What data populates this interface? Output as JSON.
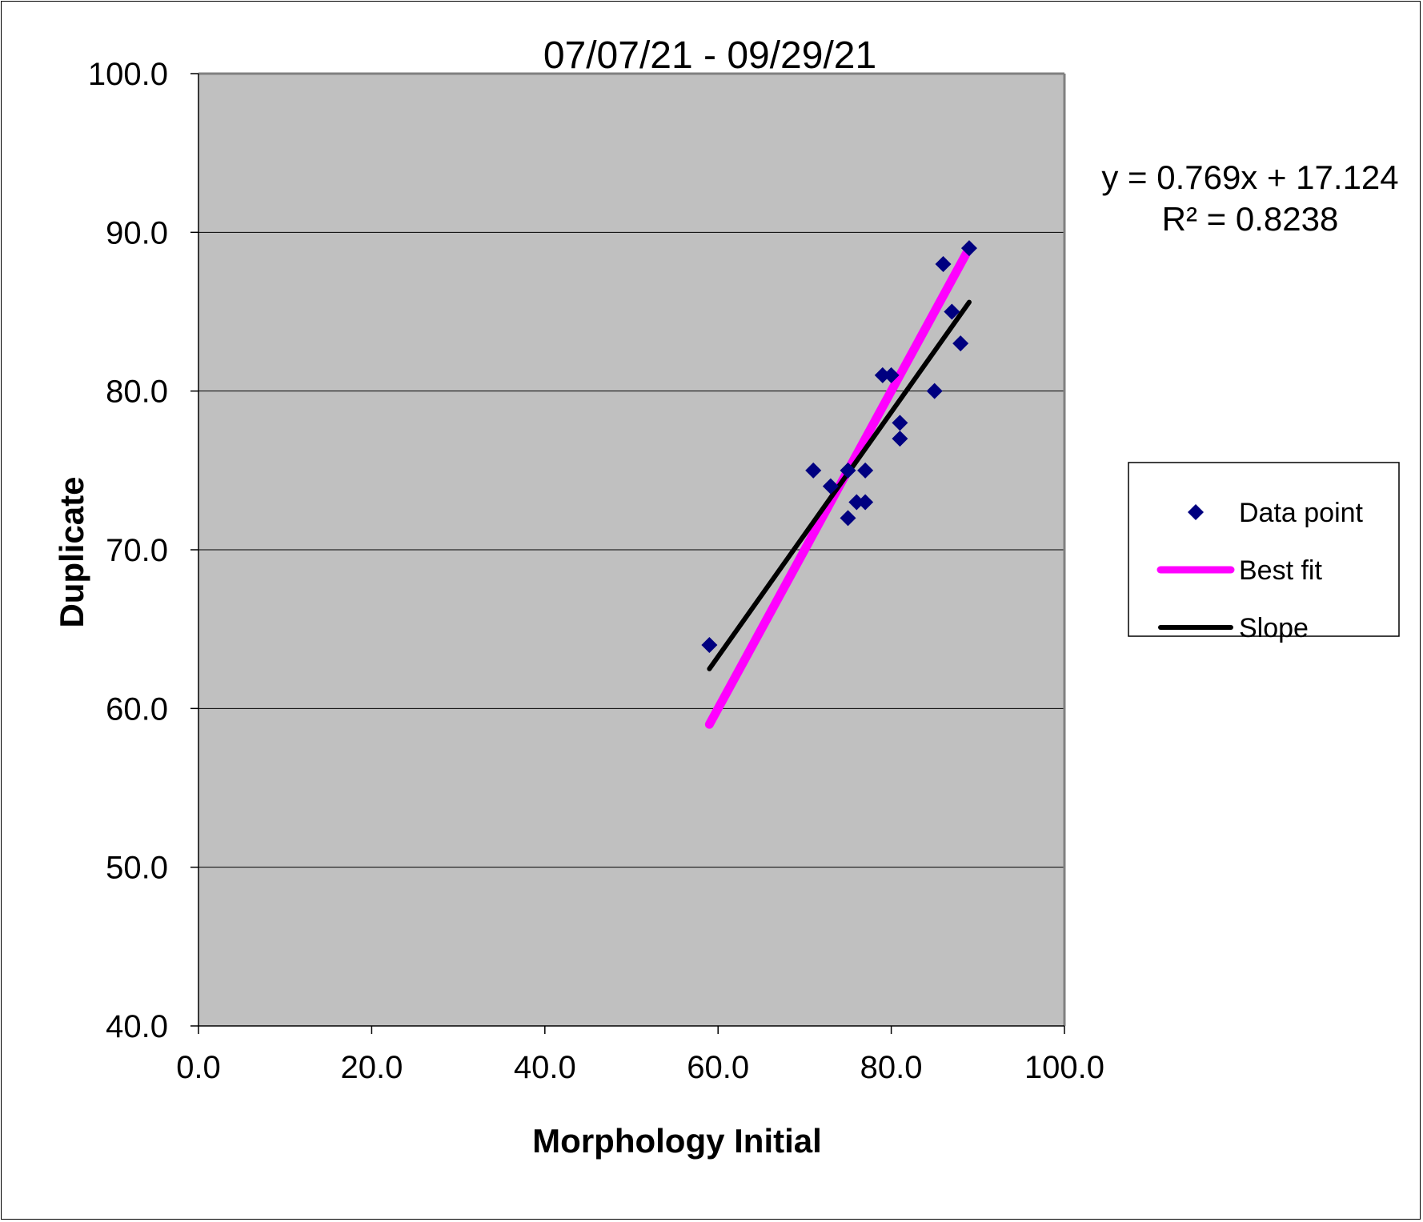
{
  "chart_data": {
    "type": "scatter",
    "title": "07/07/21 - 09/29/21",
    "xlabel": "Morphology Initial",
    "ylabel": "Duplicate",
    "xlim": [
      0,
      100
    ],
    "ylim": [
      40,
      100
    ],
    "xticks": [
      "0.0",
      "20.0",
      "40.0",
      "60.0",
      "80.0",
      "100.0"
    ],
    "yticks": [
      "40.0",
      "50.0",
      "60.0",
      "70.0",
      "80.0",
      "90.0",
      "100.0"
    ],
    "xtick_values": [
      0,
      20,
      40,
      60,
      80,
      100
    ],
    "ytick_values": [
      40,
      50,
      60,
      70,
      80,
      90,
      100
    ],
    "grid": "horizontal",
    "plot_background": "#c0c0c0",
    "legend_position": "right",
    "equation": "y = 0.769x + 17.124",
    "r_squared": "R² = 0.8238",
    "series": [
      {
        "name": "Data point",
        "kind": "scatter",
        "marker": "diamond",
        "color": "#000080",
        "points": [
          [
            59,
            64
          ],
          [
            71,
            75
          ],
          [
            73,
            74
          ],
          [
            75,
            75
          ],
          [
            75,
            72
          ],
          [
            76,
            73
          ],
          [
            77,
            75
          ],
          [
            77,
            73
          ],
          [
            79,
            81
          ],
          [
            80,
            81
          ],
          [
            81,
            78
          ],
          [
            81,
            77
          ],
          [
            85,
            80
          ],
          [
            86,
            88
          ],
          [
            87,
            85
          ],
          [
            88,
            83
          ],
          [
            89,
            89
          ]
        ]
      },
      {
        "name": "Best fit",
        "kind": "line",
        "color": "#ff00ff",
        "points": [
          [
            59,
            59
          ],
          [
            89,
            89
          ]
        ]
      },
      {
        "name": "Slope",
        "kind": "line",
        "color": "#000000",
        "points": [
          [
            59,
            62.5
          ],
          [
            89,
            85.6
          ]
        ]
      }
    ]
  }
}
